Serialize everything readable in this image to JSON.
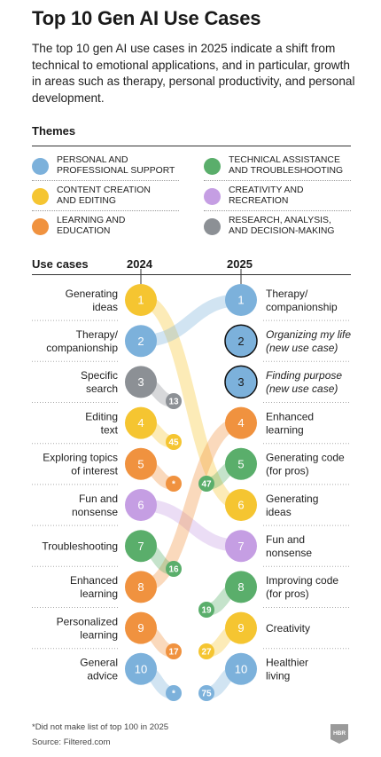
{
  "title": "Top 10 Gen AI Use Cases",
  "subtitle": "The top 10 gen AI use cases in 2025 indicate a shift from technical to emotional applications, and in particular, growth in areas such as therapy, personal productivity, and personal development.",
  "themes_heading": "Themes",
  "themes": [
    {
      "label": "Personal and\nprofessional support",
      "color": "#7cb1db"
    },
    {
      "label": "Technical assistance\nand troubleshooting",
      "color": "#5aae6b"
    },
    {
      "label": "Content creation\nand editing",
      "color": "#f5c531"
    },
    {
      "label": "Creativity and\nrecreation",
      "color": "#c59ee3"
    },
    {
      "label": "Learning and\neducation",
      "color": "#f0923f"
    },
    {
      "label": "Research, analysis,\nand decision-making",
      "color": "#8c9095"
    }
  ],
  "chart_data": {
    "type": "slope",
    "column_headers": {
      "use_cases": "Use cases",
      "year_a": "2024",
      "year_b": "2025"
    },
    "ranks_2024": [
      {
        "rank": "1",
        "name": "Generating\nideas",
        "theme": 2,
        "rank_2025": 6
      },
      {
        "rank": "2",
        "name": "Therapy/\ncompanionship",
        "theme": 0,
        "rank_2025": 1
      },
      {
        "rank": "3",
        "name": "Specific\nsearch",
        "theme": 5,
        "rank_2025": 13
      },
      {
        "rank": "4",
        "name": "Editing\ntext",
        "theme": 2,
        "rank_2025": 45
      },
      {
        "rank": "5",
        "name": "Exploring topics\nof interest",
        "theme": 4,
        "rank_2025": "*"
      },
      {
        "rank": "6",
        "name": "Fun and\nnonsense",
        "theme": 3,
        "rank_2025": 7
      },
      {
        "rank": "7",
        "name": "Troubleshooting",
        "theme": 1,
        "rank_2025": 16
      },
      {
        "rank": "8",
        "name": "Enhanced\nlearning",
        "theme": 4,
        "rank_2025": 4
      },
      {
        "rank": "9",
        "name": "Personalized\nlearning",
        "theme": 4,
        "rank_2025": 17
      },
      {
        "rank": "10",
        "name": "General\nadvice",
        "theme": 0,
        "rank_2025": "*"
      }
    ],
    "ranks_2025": [
      {
        "rank": "1",
        "name": "Therapy/\ncompanionship",
        "theme": 0,
        "new": false,
        "rank_2024": 2
      },
      {
        "rank": "2",
        "name": "Organizing my life\n(new use case)",
        "theme": 0,
        "new": true
      },
      {
        "rank": "3",
        "name": "Finding purpose\n(new use case)",
        "theme": 0,
        "new": true
      },
      {
        "rank": "4",
        "name": "Enhanced\nlearning",
        "theme": 4,
        "new": false,
        "rank_2024": 8
      },
      {
        "rank": "5",
        "name": "Generating code\n(for pros)",
        "theme": 1,
        "new": false,
        "rank_2024": 47
      },
      {
        "rank": "6",
        "name": "Generating\nideas",
        "theme": 2,
        "new": false,
        "rank_2024": 1
      },
      {
        "rank": "7",
        "name": "Fun and\nnonsense",
        "theme": 3,
        "new": false,
        "rank_2024": 6
      },
      {
        "rank": "8",
        "name": "Improving code\n(for pros)",
        "theme": 1,
        "new": false,
        "rank_2024": 19
      },
      {
        "rank": "9",
        "name": "Creativity",
        "theme": 2,
        "new": false,
        "rank_2024": 27
      },
      {
        "rank": "10",
        "name": "Healthier\nliving",
        "theme": 0,
        "new": false,
        "rank_2024": 75
      }
    ]
  },
  "footnote": "*Did not make list of top 100 in 2025",
  "source": "Source: Filtered.com",
  "logo_text": "HBR"
}
